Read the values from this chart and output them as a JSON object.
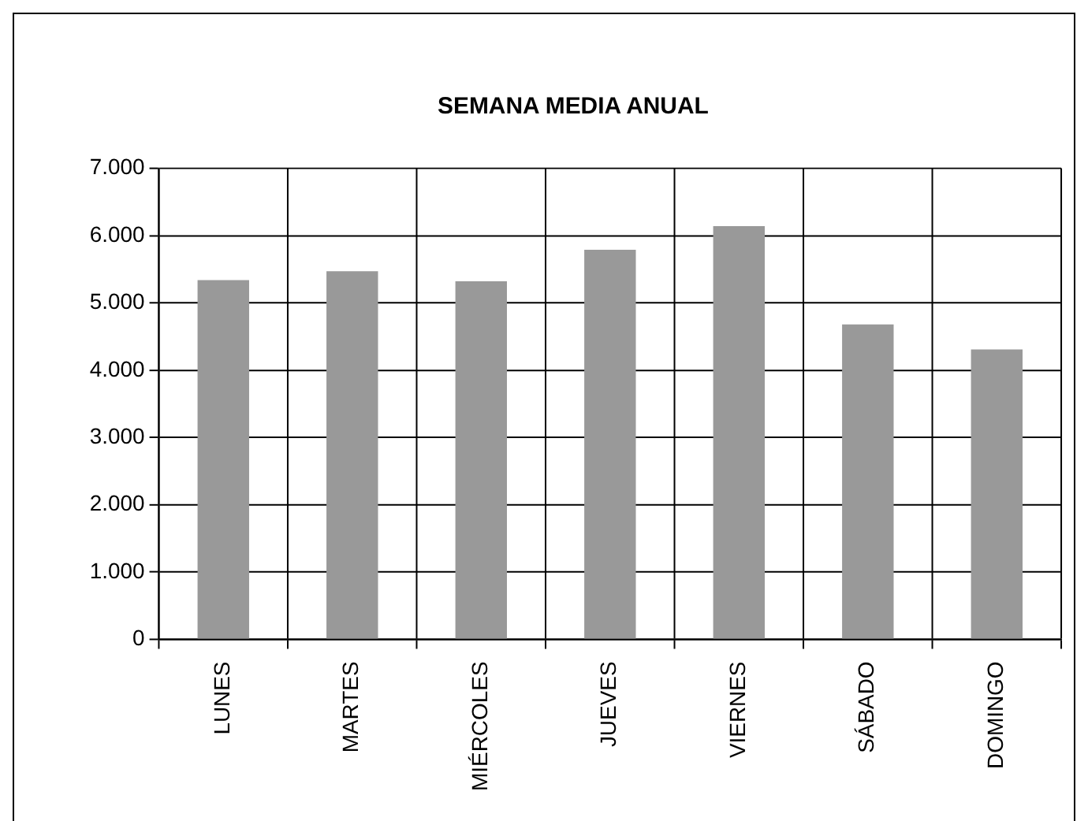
{
  "chart_data": {
    "type": "bar",
    "title": "SEMANA MEDIA ANUAL",
    "categories": [
      "LUNES",
      "MARTES",
      "MIÉRCOLES",
      "JUEVES",
      "VIERNES",
      "SÁBADO",
      "DOMINGO"
    ],
    "values": [
      5340,
      5470,
      5320,
      5790,
      6140,
      4680,
      4310
    ],
    "color": "#999999",
    "ylim": [
      0,
      7000
    ],
    "yticks": [
      0,
      {
        "value": 1000,
        "label": "1.000"
      },
      {
        "value": 2000,
        "label": "2.000"
      },
      {
        "value": 3000,
        "label": "3.000"
      },
      {
        "value": 4000,
        "label": "4.000"
      },
      {
        "value": 5000,
        "label": "5.000"
      },
      {
        "value": 6000,
        "label": "6.000"
      },
      {
        "value": 7000,
        "label": "7.000"
      }
    ],
    "grid": true,
    "legend": false
  }
}
